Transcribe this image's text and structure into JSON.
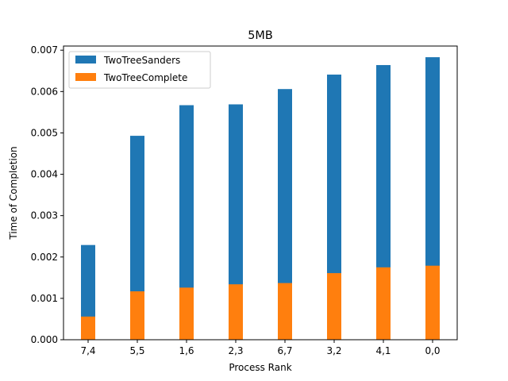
{
  "chart_data": {
    "type": "bar",
    "title": "5MB",
    "xlabel": "Process Rank",
    "ylabel": "Time of Completion",
    "categories": [
      "7,4",
      "5,5",
      "1,6",
      "2,3",
      "6,7",
      "3,2",
      "4,1",
      "0,0"
    ],
    "series": [
      {
        "name": "TwoTreeSanders",
        "color": "#1f77b4",
        "values": [
          0.00229,
          0.00493,
          0.00567,
          0.00569,
          0.00606,
          0.00641,
          0.00664,
          0.00683
        ]
      },
      {
        "name": "TwoTreeComplete",
        "color": "#ff7f0e",
        "values": [
          0.00056,
          0.00117,
          0.00126,
          0.00134,
          0.00137,
          0.00161,
          0.00175,
          0.00179
        ]
      }
    ],
    "ylim": [
      0,
      0.0071
    ],
    "yticks": [
      "0.000",
      "0.001",
      "0.002",
      "0.003",
      "0.004",
      "0.005",
      "0.006",
      "0.007"
    ],
    "grid": false,
    "legend_position": "top-left"
  }
}
